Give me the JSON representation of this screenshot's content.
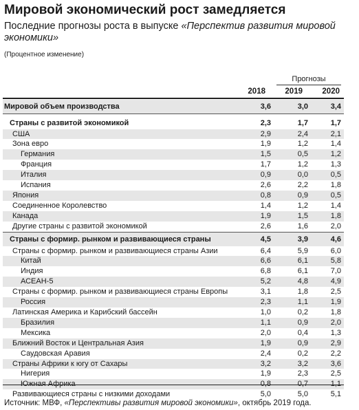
{
  "title": "Мировой экономический рост замедляется",
  "subtitle": {
    "prefix": "Последние прогнозы роста в выпуске ",
    "publication": "«Перспектив развития мировой экономики»"
  },
  "units": "(Процентное изменение)",
  "header": {
    "forecast_label": "Прогнозы",
    "years": [
      "2018",
      "2019",
      "2020"
    ]
  },
  "rows": [
    {
      "label": "Мировой объем производства",
      "values": [
        "3,6",
        "3,0",
        "3,4"
      ]
    },
    {
      "label": "Страны с развитой экономикой",
      "values": [
        "2,3",
        "1,7",
        "1,7"
      ]
    },
    {
      "label": "США",
      "values": [
        "2,9",
        "2,4",
        "2,1"
      ]
    },
    {
      "label": "Зона евро",
      "values": [
        "1,9",
        "1,2",
        "1,4"
      ]
    },
    {
      "label": "Германия",
      "values": [
        "1,5",
        "0,5",
        "1,2"
      ]
    },
    {
      "label": "Франция",
      "values": [
        "1,7",
        "1,2",
        "1,3"
      ]
    },
    {
      "label": "Италия",
      "values": [
        "0,9",
        "0,0",
        "0,5"
      ]
    },
    {
      "label": "Испания",
      "values": [
        "2,6",
        "2,2",
        "1,8"
      ]
    },
    {
      "label": "Япония",
      "values": [
        "0,8",
        "0,9",
        "0,5"
      ]
    },
    {
      "label": "Соединенное Королевство",
      "values": [
        "1,4",
        "1,2",
        "1,4"
      ]
    },
    {
      "label": "Канада",
      "values": [
        "1,9",
        "1,5",
        "1,8"
      ]
    },
    {
      "label": "Другие страны с развитой экономикой",
      "values": [
        "2,6",
        "1,6",
        "2,0"
      ]
    },
    {
      "label": "Страны с формир. рынком и развивающиеся страны",
      "values": [
        "4,5",
        "3,9",
        "4,6"
      ]
    },
    {
      "label": "Страны с формир. рынком и развивающиеся страны Азии",
      "values": [
        "6,4",
        "5,9",
        "6,0"
      ]
    },
    {
      "label": "Китай",
      "values": [
        "6,6",
        "6,1",
        "5,8"
      ]
    },
    {
      "label": "Индия",
      "values": [
        "6,8",
        "6,1",
        "7,0"
      ]
    },
    {
      "label": "АСЕАН-5",
      "values": [
        "5,2",
        "4,8",
        "4,9"
      ]
    },
    {
      "label": "Страны с формир. рынком и развивающиеся страны Европы",
      "values": [
        "3,1",
        "1,8",
        "2,5"
      ]
    },
    {
      "label": "Россия",
      "values": [
        "2,3",
        "1,1",
        "1,9"
      ]
    },
    {
      "label": "Латинская Америка и Карибский бассейн",
      "values": [
        "1,0",
        "0,2",
        "1,8"
      ]
    },
    {
      "label": "Бразилия",
      "values": [
        "1,1",
        "0,9",
        "2,0"
      ]
    },
    {
      "label": "Мексика",
      "values": [
        "2,0",
        "0,4",
        "1,3"
      ]
    },
    {
      "label": "Ближний Восток и Центральная Азия",
      "values": [
        "1,9",
        "0,9",
        "2,9"
      ]
    },
    {
      "label": "Саудовская Аравия",
      "values": [
        "2,4",
        "0,2",
        "2,2"
      ]
    },
    {
      "label": "Страны Африки к югу от Сахары",
      "values": [
        "3,2",
        "3,2",
        "3,6"
      ]
    },
    {
      "label": "Нигерия",
      "values": [
        "1,9",
        "2,3",
        "2,5"
      ]
    },
    {
      "label": "Южная Африка",
      "values": [
        "0,8",
        "0,7",
        "1,1"
      ]
    },
    {
      "label": "Развивающиеся страны с низкими доходами",
      "values": [
        "5,0",
        "5,0",
        "5,1"
      ]
    }
  ],
  "source": {
    "prefix": "Источник: МВФ, ",
    "publication": "«Перспективы развития мировой экономики»",
    "suffix": ", октябрь 2019 года."
  }
}
